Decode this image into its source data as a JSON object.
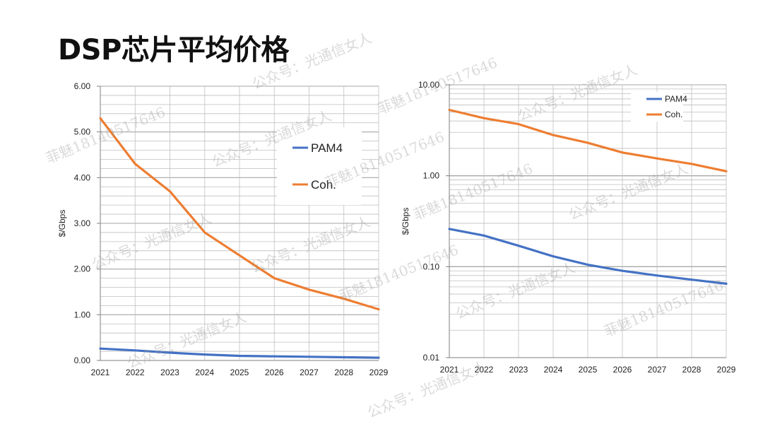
{
  "page_title": "DSP芯片平均价格",
  "colors": {
    "pam4": "#4472C4",
    "coh": "#ED7D31",
    "grid": "#BFBFBF",
    "axis": "#7F7F7F"
  },
  "watermarks": [
    "公众号：光通信女人",
    "菲魅18140517646",
    "公众号：光通信女人",
    "菲魅18140517646",
    "公众号：光通信女人",
    "菲魅18140517646",
    "公众号：光通信女人",
    "菲魅18140517646",
    "公众号：光通信女人",
    "公众号：光通信女人",
    "菲魅18140517646",
    "公众号：光通信女人",
    "菲魅18140517646",
    "公众号：光通信女人",
    "公众号：光通信女人"
  ],
  "chart_data": [
    {
      "type": "line",
      "ylabel": "$/Gbps",
      "yscale": "linear",
      "ylim": [
        0,
        6
      ],
      "yticks": [
        "0.00",
        "1.00",
        "2.00",
        "3.00",
        "4.00",
        "5.00",
        "6.00"
      ],
      "x": [
        "2021",
        "2022",
        "2023",
        "2024",
        "2025",
        "2026",
        "2027",
        "2028",
        "2029"
      ],
      "legend_position": "top-right",
      "series": [
        {
          "name": "PAM4",
          "color": "#4472C4",
          "values": [
            0.26,
            0.22,
            0.17,
            0.13,
            0.1,
            0.09,
            0.08,
            0.07,
            0.06
          ]
        },
        {
          "name": "Coh.",
          "color": "#ED7D31",
          "values": [
            5.3,
            4.3,
            3.7,
            2.8,
            2.3,
            1.8,
            1.55,
            1.35,
            1.12
          ]
        }
      ],
      "grid": true
    },
    {
      "type": "line",
      "ylabel": "$/Gbps",
      "yscale": "log",
      "ylim": [
        0.01,
        10
      ],
      "yticks": [
        "0.01",
        "0.10",
        "1.00",
        "10.00"
      ],
      "x": [
        "2021",
        "2022",
        "2023",
        "2024",
        "2025",
        "2026",
        "2027",
        "2028",
        "2029"
      ],
      "legend_position": "top-right",
      "series": [
        {
          "name": "PAM4",
          "color": "#4472C4",
          "values": [
            0.26,
            0.22,
            0.17,
            0.13,
            0.105,
            0.09,
            0.08,
            0.072,
            0.065
          ]
        },
        {
          "name": "Coh.",
          "color": "#ED7D31",
          "values": [
            5.3,
            4.3,
            3.7,
            2.8,
            2.3,
            1.8,
            1.55,
            1.35,
            1.12
          ]
        }
      ],
      "grid": true
    }
  ]
}
